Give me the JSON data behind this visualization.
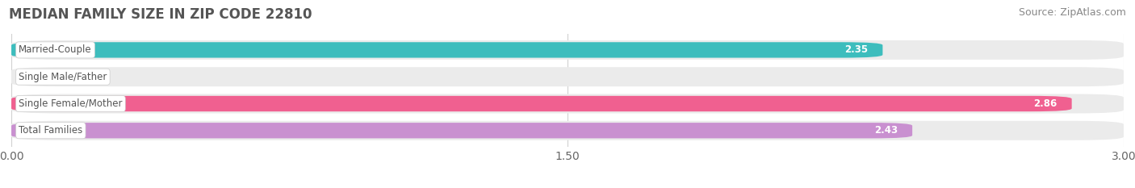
{
  "title": "MEDIAN FAMILY SIZE IN ZIP CODE 22810",
  "source": "Source: ZipAtlas.com",
  "categories": [
    "Married-Couple",
    "Single Male/Father",
    "Single Female/Mother",
    "Total Families"
  ],
  "values": [
    2.35,
    0.0,
    2.86,
    2.43
  ],
  "bar_colors": [
    "#3dbdbd",
    "#aab4e8",
    "#f06090",
    "#c990d0"
  ],
  "xlim": [
    0,
    3.0
  ],
  "xticks": [
    0.0,
    1.5,
    3.0
  ],
  "xtick_labels": [
    "0.00",
    "1.50",
    "3.00"
  ],
  "background_color": "#ffffff",
  "bar_background": "#ebebeb",
  "grid_color": "#d0d0d0",
  "title_fontsize": 12,
  "source_fontsize": 9,
  "tick_fontsize": 10,
  "label_fontsize": 8.5,
  "value_fontsize": 8.5
}
